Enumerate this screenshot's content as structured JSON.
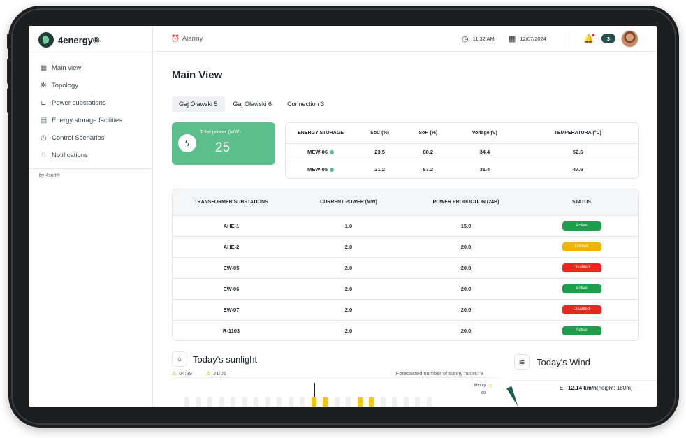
{
  "app": {
    "name": "4energy®",
    "footer": "by 4soft®"
  },
  "sidebar": {
    "items": [
      {
        "label": "Main view",
        "icon": "grid-icon"
      },
      {
        "label": "Topology",
        "icon": "topology-icon"
      },
      {
        "label": "Power substations",
        "icon": "substation-icon"
      },
      {
        "label": "Energy storage facilities",
        "icon": "storage-icon"
      },
      {
        "label": "Control Scenarios",
        "icon": "scenario-icon"
      },
      {
        "label": "Notifications",
        "icon": "notification-icon"
      }
    ]
  },
  "header": {
    "alarm_label": "Alarmy",
    "time": "11:32 AM",
    "date": "12/07/2024",
    "notification_count": "3"
  },
  "main": {
    "title": "Main View",
    "tabs": [
      {
        "label": "Gaj Oławski 5",
        "active": true
      },
      {
        "label": "Gaj Oławski 6",
        "active": false
      },
      {
        "label": "Connection 3",
        "active": false
      }
    ],
    "total_power": {
      "label": "Total power (MW)",
      "value": "25"
    }
  },
  "energy_storage": {
    "columns": [
      "ENERGY STORAGE",
      "SoC (%)",
      "SoH (%)",
      "Voltage (V)",
      "TEMPERATURA (°C)"
    ],
    "rows": [
      {
        "name": "MEW-06",
        "soc": "23.5",
        "soh": "88.2",
        "voltage": "34.4",
        "temp": "52.6"
      },
      {
        "name": "MEW-05",
        "soc": "21.2",
        "soh": "87.2",
        "voltage": "31.4",
        "temp": "47.6"
      }
    ]
  },
  "substations": {
    "columns": [
      "TRANSFORMER SUBSTATIONS",
      "CURRENT POWER (MW)",
      "POWER PRODUCTION (24H)",
      "STATUS"
    ],
    "rows": [
      {
        "name": "AHE-1",
        "current": "1.0",
        "production": "15.0",
        "status": "Active",
        "color": "#1e9e4a"
      },
      {
        "name": "AHE-2",
        "current": "2.0",
        "production": "20.0",
        "status": "Limited",
        "color": "#f0b400"
      },
      {
        "name": "EW-05",
        "current": "2.0",
        "production": "20.0",
        "status": "Disabled",
        "color": "#e8281e"
      },
      {
        "name": "EW-06",
        "current": "2.0",
        "production": "20.0",
        "status": "Active",
        "color": "#1e9e4a"
      },
      {
        "name": "EW-07",
        "current": "2.0",
        "production": "20.0",
        "status": "Disabled",
        "color": "#e8281e"
      },
      {
        "name": "R-1103",
        "current": "2.0",
        "production": "20.0",
        "status": "Active",
        "color": "#1e9e4a"
      }
    ]
  },
  "sunlight": {
    "title": "Today's sunlight",
    "sunrise": "04:38",
    "sunset": "21:01",
    "forecast": "Forecasted number of sunny hours: 9",
    "axis_unit": "Minuty",
    "axis_tick": "60"
  },
  "wind": {
    "title": "Today's Wind",
    "direction": "E",
    "speed": "12.14 km/h",
    "height": "(height: 180m)"
  },
  "chart_data": {
    "type": "bar",
    "categories": [],
    "values": [],
    "sunny_bar_indices": [
      11,
      12,
      15,
      16
    ],
    "ylabel": "Minuty",
    "yticks": [
      60
    ]
  }
}
